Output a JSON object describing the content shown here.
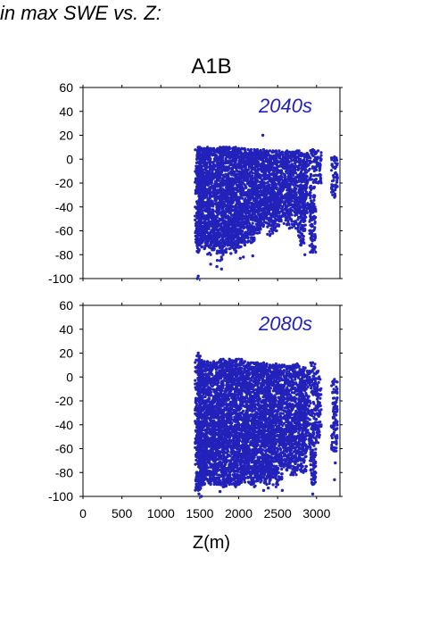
{
  "page": {
    "title": "in max SWE vs. Z:"
  },
  "chart_data": {
    "type": "scatter",
    "title": "A1B",
    "xlabel": "Z(m)",
    "ylabel": "",
    "xlim": [
      0,
      3300
    ],
    "x_ticks": [
      0,
      500,
      1000,
      1500,
      2000,
      2500,
      3000
    ],
    "marker_color": "#2222bb",
    "panels": [
      {
        "label": "2040s",
        "ylim": [
          -100,
          60
        ],
        "y_ticks": [
          60,
          40,
          20,
          0,
          -20,
          -40,
          -60,
          -80,
          -100
        ],
        "columns": [
          [
            1480,
            -78,
            10
          ],
          [
            1500,
            -72,
            10
          ],
          [
            1525,
            -70,
            9
          ],
          [
            1560,
            -75,
            9
          ],
          [
            1600,
            -68,
            10
          ],
          [
            1640,
            -80,
            9
          ],
          [
            1680,
            -76,
            9
          ],
          [
            1720,
            -72,
            8
          ],
          [
            1760,
            -85,
            10
          ],
          [
            1800,
            -80,
            10
          ],
          [
            1840,
            -78,
            10
          ],
          [
            1880,
            -75,
            10
          ],
          [
            1920,
            -70,
            9
          ],
          [
            1960,
            -78,
            10
          ],
          [
            2000,
            -74,
            9
          ],
          [
            2040,
            -68,
            9
          ],
          [
            2080,
            -72,
            8
          ],
          [
            2120,
            -66,
            8
          ],
          [
            2160,
            -70,
            8
          ],
          [
            2200,
            -60,
            8
          ],
          [
            2240,
            -62,
            8
          ],
          [
            2280,
            -58,
            7
          ],
          [
            2320,
            -55,
            8
          ],
          [
            2360,
            -50,
            7
          ],
          [
            2400,
            -64,
            7
          ],
          [
            2440,
            -48,
            7
          ],
          [
            2480,
            -60,
            7
          ],
          [
            2520,
            -52,
            7
          ],
          [
            2560,
            -48,
            6
          ],
          [
            2620,
            -55,
            7
          ],
          [
            2650,
            -58,
            6
          ],
          [
            2700,
            -40,
            6
          ],
          [
            2750,
            -58,
            7
          ],
          [
            2800,
            -72,
            5
          ],
          [
            2830,
            -60,
            4
          ],
          [
            2880,
            -45,
            5
          ],
          [
            2950,
            -78,
            8
          ],
          [
            3020,
            -20,
            7
          ],
          [
            3230,
            -32,
            2
          ]
        ],
        "points": [
          [
            1480,
            -98
          ],
          [
            1470,
            -100
          ],
          [
            1780,
            -92
          ],
          [
            1720,
            -90
          ],
          [
            2020,
            -83
          ],
          [
            2180,
            -81
          ],
          [
            2060,
            -82
          ],
          [
            2310,
            20
          ],
          [
            1640,
            -88
          ],
          [
            1900,
            -79
          ],
          [
            2850,
            -80
          ]
        ]
      },
      {
        "label": "2080s",
        "ylim": [
          -100,
          60
        ],
        "y_ticks": [
          60,
          40,
          20,
          0,
          -20,
          -40,
          -60,
          -80,
          -100
        ],
        "columns": [
          [
            1480,
            -95,
            18
          ],
          [
            1500,
            -92,
            12
          ],
          [
            1525,
            -88,
            14
          ],
          [
            1560,
            -90,
            13
          ],
          [
            1600,
            -86,
            13
          ],
          [
            1640,
            -90,
            12
          ],
          [
            1680,
            -86,
            13
          ],
          [
            1720,
            -90,
            12
          ],
          [
            1760,
            -88,
            14
          ],
          [
            1800,
            -92,
            15
          ],
          [
            1840,
            -88,
            13
          ],
          [
            1880,
            -90,
            15
          ],
          [
            1920,
            -86,
            12
          ],
          [
            1960,
            -92,
            14
          ],
          [
            2000,
            -90,
            15
          ],
          [
            2040,
            -86,
            14
          ],
          [
            2080,
            -88,
            13
          ],
          [
            2120,
            -84,
            12
          ],
          [
            2160,
            -90,
            12
          ],
          [
            2200,
            -92,
            11
          ],
          [
            2240,
            -86,
            12
          ],
          [
            2280,
            -88,
            10
          ],
          [
            2320,
            -84,
            12
          ],
          [
            2360,
            -90,
            11
          ],
          [
            2400,
            -86,
            10
          ],
          [
            2440,
            -84,
            10
          ],
          [
            2480,
            -92,
            11
          ],
          [
            2520,
            -86,
            10
          ],
          [
            2560,
            -74,
            10
          ],
          [
            2620,
            -78,
            9
          ],
          [
            2650,
            -70,
            9
          ],
          [
            2700,
            -82,
            10
          ],
          [
            2750,
            -78,
            11
          ],
          [
            2800,
            -70,
            6
          ],
          [
            2830,
            -80,
            8
          ],
          [
            2880,
            -60,
            5
          ],
          [
            2950,
            -90,
            12
          ],
          [
            3020,
            -55,
            5
          ],
          [
            3230,
            -62,
            -2
          ]
        ],
        "points": [
          [
            1480,
            20
          ],
          [
            1520,
            -100
          ],
          [
            1490,
            -98
          ],
          [
            2950,
            -98
          ],
          [
            3230,
            -86
          ],
          [
            2320,
            -95
          ],
          [
            1760,
            -96
          ],
          [
            3240,
            -72
          ],
          [
            2560,
            -95
          ],
          [
            2380,
            -93
          ]
        ]
      }
    ]
  }
}
